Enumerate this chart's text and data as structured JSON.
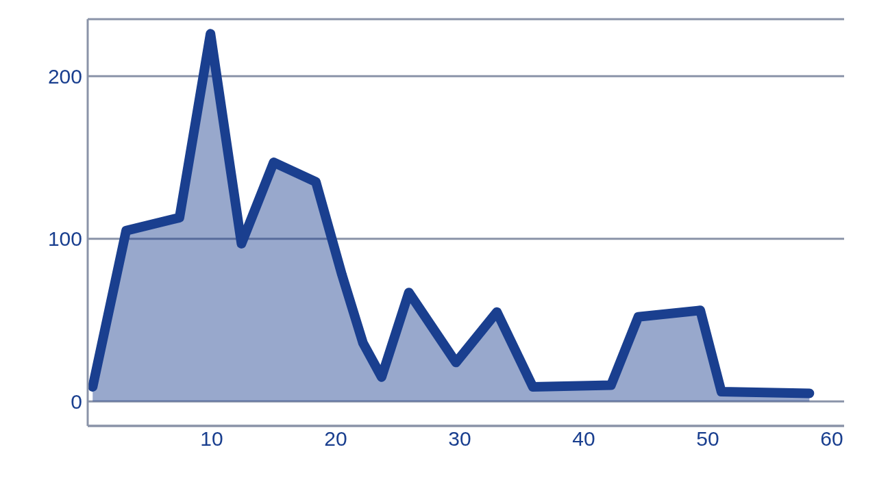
{
  "chart_data": {
    "type": "area",
    "x": [
      0.4,
      3.1,
      7.4,
      9.9,
      12.4,
      15.0,
      18.4,
      20.5,
      22.2,
      23.7,
      25.9,
      29.7,
      33.0,
      35.9,
      42.2,
      44.4,
      49.4,
      51.1,
      58.2
    ],
    "series": [
      {
        "color": "#1a3f8f",
        "values": [
          9,
          105,
          113,
          226,
          97,
          147,
          135,
          78,
          36,
          15,
          67,
          24,
          55,
          9,
          10,
          52,
          56,
          6,
          5
        ]
      }
    ],
    "xlim": [
      0,
      61
    ],
    "xticks": [
      10,
      20,
      30,
      40,
      50,
      60
    ],
    "ylim": [
      -15,
      235
    ],
    "yticks": [
      0,
      100,
      200
    ],
    "grid": "y",
    "marker": "none",
    "line_style": "solid"
  }
}
